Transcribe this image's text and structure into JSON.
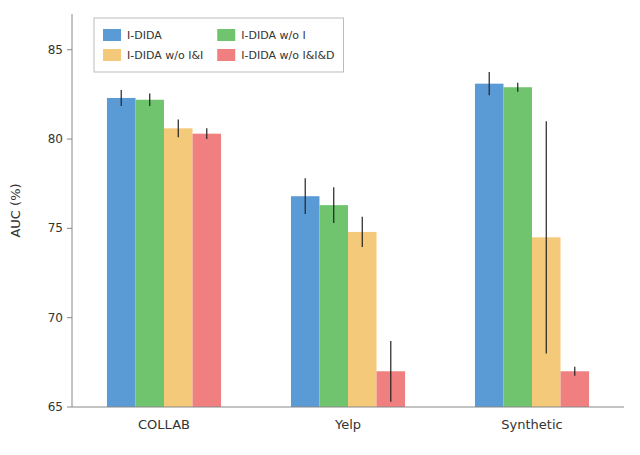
{
  "chart_data": {
    "type": "bar",
    "ylabel": "AUC (%)",
    "categories": [
      "COLLAB",
      "Yelp",
      "Synthetic"
    ],
    "series": [
      {
        "name": "I-DIDA",
        "color": "#5b9bd5",
        "values": [
          82.3,
          76.8,
          83.1
        ],
        "errors": [
          0.45,
          1.0,
          0.65
        ]
      },
      {
        "name": "I-DIDA w/o I",
        "color": "#70c46e",
        "values": [
          82.2,
          76.3,
          82.9
        ],
        "errors": [
          0.35,
          1.0,
          0.25
        ]
      },
      {
        "name": "I-DIDA w/o I&I",
        "color": "#f5c97a",
        "values": [
          80.6,
          74.8,
          74.5
        ],
        "errors": [
          0.5,
          0.85,
          6.5
        ]
      },
      {
        "name": "I-DIDA w/o I&I&D",
        "color": "#f08080",
        "values": [
          80.3,
          67.0,
          67.0
        ],
        "errors": [
          0.3,
          1.7,
          0.25
        ]
      }
    ],
    "ylim": [
      65,
      87
    ],
    "yticks": [
      65,
      70,
      75,
      80,
      85
    ],
    "grid": false,
    "legend": "upper left"
  }
}
